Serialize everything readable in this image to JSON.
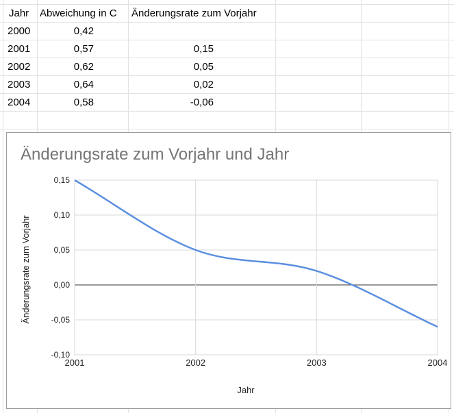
{
  "sheet": {
    "headers": [
      "Jahr",
      "Abweichung in C",
      "Änderungsrate zum Vorjahr"
    ],
    "rows": [
      {
        "jahr": "2000",
        "abweichung": "0,42",
        "rate": ""
      },
      {
        "jahr": "2001",
        "abweichung": "0,57",
        "rate": "0,15"
      },
      {
        "jahr": "2002",
        "abweichung": "0,62",
        "rate": "0,05"
      },
      {
        "jahr": "2003",
        "abweichung": "0,64",
        "rate": "0,02"
      },
      {
        "jahr": "2004",
        "abweichung": "0,58",
        "rate": "-0,06"
      }
    ]
  },
  "chart_data": {
    "type": "line",
    "title": "Änderungsrate zum Vorjahr und Jahr",
    "xlabel": "Jahr",
    "ylabel": "Änderungsrate zum Vorjahr",
    "x": [
      2001,
      2002,
      2003,
      2004
    ],
    "x_tick_labels": [
      "2001",
      "2002",
      "2003",
      "2004"
    ],
    "y_tick_labels": [
      "0,15",
      "0,10",
      "0,05",
      "0,00",
      "-0,05",
      "-0,10"
    ],
    "y_ticks": [
      0.15,
      0.1,
      0.05,
      0.0,
      -0.05,
      -0.1
    ],
    "ylim": [
      -0.1,
      0.15
    ],
    "series": [
      {
        "values": [
          0.15,
          0.05,
          0.02,
          -0.06
        ],
        "color": "#5b8fe0"
      }
    ],
    "smooth": true,
    "grid": true,
    "zero_line_color": "#333333"
  }
}
